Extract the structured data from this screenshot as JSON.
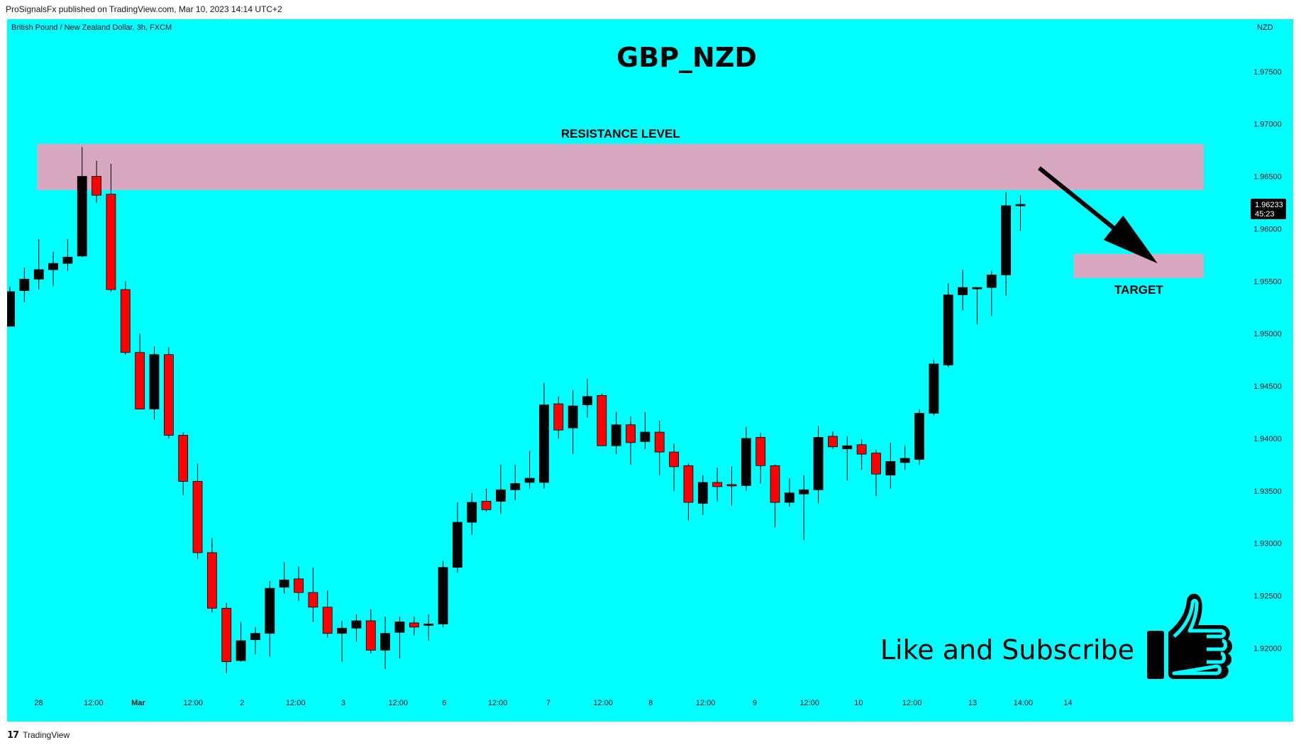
{
  "header": {
    "published_line": "ProSignalsFx published on TradingView.com, Mar 10, 2023 14:14 UTC+2"
  },
  "footer": {
    "logo_glyph": "17",
    "brand": "TradingView"
  },
  "colors": {
    "background": "#00FFFF",
    "bull": "#000000",
    "bear": "#FF0000",
    "zone": "#D8A8C0",
    "text": "#131722"
  },
  "chart_data": {
    "type": "candlestick",
    "symbol_label": "British Pound / New Zealand Dollar, 3h, FXCM",
    "title": "GBP_NZD",
    "currency": "NZD",
    "ylim": [
      1.914,
      1.98
    ],
    "y_ticks": [
      "1.97500",
      "1.97000",
      "1.96500",
      "1.96000",
      "1.95500",
      "1.95000",
      "1.94500",
      "1.94000",
      "1.93500",
      "1.93000",
      "1.92500",
      "1.92000"
    ],
    "x_ticks": [
      "28",
      "12:00",
      "Mar",
      "12:00",
      "2",
      "12:00",
      "3",
      "12:00",
      "6",
      "12:00",
      "7",
      "12:00",
      "8",
      "12:00",
      "9",
      "12:00",
      "10",
      "12:00",
      "13",
      "14:00",
      "14"
    ],
    "last_price": {
      "price": "1.96233",
      "countdown": "45:23",
      "value": 1.96233
    },
    "zones": [
      {
        "name": "RESISTANCE LEVEL",
        "low": 1.9637,
        "high": 1.9681,
        "from_index": 1.9,
        "to_index": 82.7,
        "label_position": "above-center"
      },
      {
        "name": "TARGET",
        "low": 1.9553,
        "high": 1.9576,
        "from_index": 73.7,
        "to_index": 82.7,
        "label_position": "below-center"
      }
    ],
    "arrow": {
      "from": [
        71.3,
        1.9658
      ],
      "to": [
        79.5,
        1.9567
      ],
      "direction": "down-right"
    },
    "annotation": {
      "text": "Like and Subscribe",
      "icon": "thumbs-up-icon"
    },
    "candles": [
      {
        "o": 1.9507,
        "h": 1.9545,
        "l": 1.9507,
        "c": 1.954
      },
      {
        "o": 1.9541,
        "h": 1.9563,
        "l": 1.953,
        "c": 1.9552
      },
      {
        "o": 1.9552,
        "h": 1.959,
        "l": 1.9542,
        "c": 1.9561
      },
      {
        "o": 1.9561,
        "h": 1.9578,
        "l": 1.9545,
        "c": 1.9567
      },
      {
        "o": 1.9567,
        "h": 1.959,
        "l": 1.956,
        "c": 1.9573
      },
      {
        "o": 1.9574,
        "h": 1.9678,
        "l": 1.9573,
        "c": 1.965
      },
      {
        "o": 1.965,
        "h": 1.9665,
        "l": 1.9625,
        "c": 1.9632
      },
      {
        "o": 1.9633,
        "h": 1.9662,
        "l": 1.954,
        "c": 1.9542
      },
      {
        "o": 1.9542,
        "h": 1.955,
        "l": 1.948,
        "c": 1.9482
      },
      {
        "o": 1.9482,
        "h": 1.95,
        "l": 1.9428,
        "c": 1.9428
      },
      {
        "o": 1.9428,
        "h": 1.9488,
        "l": 1.9418,
        "c": 1.948
      },
      {
        "o": 1.948,
        "h": 1.9487,
        "l": 1.94,
        "c": 1.9403
      },
      {
        "o": 1.9403,
        "h": 1.9406,
        "l": 1.9346,
        "c": 1.9359
      },
      {
        "o": 1.9359,
        "h": 1.9376,
        "l": 1.9285,
        "c": 1.9291
      },
      {
        "o": 1.9291,
        "h": 1.9305,
        "l": 1.9234,
        "c": 1.9238
      },
      {
        "o": 1.9238,
        "h": 1.9243,
        "l": 1.9176,
        "c": 1.9187
      },
      {
        "o": 1.9188,
        "h": 1.9225,
        "l": 1.9187,
        "c": 1.9207
      },
      {
        "o": 1.9208,
        "h": 1.922,
        "l": 1.9194,
        "c": 1.9214
      },
      {
        "o": 1.9214,
        "h": 1.9264,
        "l": 1.9192,
        "c": 1.9257
      },
      {
        "o": 1.9258,
        "h": 1.9282,
        "l": 1.9252,
        "c": 1.9265
      },
      {
        "o": 1.9266,
        "h": 1.9278,
        "l": 1.9245,
        "c": 1.9253
      },
      {
        "o": 1.9253,
        "h": 1.9277,
        "l": 1.9225,
        "c": 1.9239
      },
      {
        "o": 1.9239,
        "h": 1.9255,
        "l": 1.921,
        "c": 1.9214
      },
      {
        "o": 1.9214,
        "h": 1.9226,
        "l": 1.9187,
        "c": 1.9219
      },
      {
        "o": 1.9219,
        "h": 1.9232,
        "l": 1.9206,
        "c": 1.9226
      },
      {
        "o": 1.9226,
        "h": 1.9237,
        "l": 1.9195,
        "c": 1.9198
      },
      {
        "o": 1.9198,
        "h": 1.923,
        "l": 1.918,
        "c": 1.9214
      },
      {
        "o": 1.9215,
        "h": 1.923,
        "l": 1.919,
        "c": 1.9225
      },
      {
        "o": 1.9224,
        "h": 1.923,
        "l": 1.9212,
        "c": 1.922
      },
      {
        "o": 1.9222,
        "h": 1.9232,
        "l": 1.9207,
        "c": 1.9223
      },
      {
        "o": 1.9223,
        "h": 1.9283,
        "l": 1.922,
        "c": 1.9277
      },
      {
        "o": 1.9277,
        "h": 1.9339,
        "l": 1.9272,
        "c": 1.932
      },
      {
        "o": 1.932,
        "h": 1.9348,
        "l": 1.9308,
        "c": 1.9339
      },
      {
        "o": 1.934,
        "h": 1.9352,
        "l": 1.933,
        "c": 1.9332
      },
      {
        "o": 1.934,
        "h": 1.9375,
        "l": 1.9328,
        "c": 1.9351
      },
      {
        "o": 1.9351,
        "h": 1.9375,
        "l": 1.9341,
        "c": 1.9357
      },
      {
        "o": 1.9358,
        "h": 1.9388,
        "l": 1.9352,
        "c": 1.9362
      },
      {
        "o": 1.9358,
        "h": 1.9453,
        "l": 1.9352,
        "c": 1.9432
      },
      {
        "o": 1.9433,
        "h": 1.944,
        "l": 1.94,
        "c": 1.9408
      },
      {
        "o": 1.941,
        "h": 1.9446,
        "l": 1.9385,
        "c": 1.9431
      },
      {
        "o": 1.9432,
        "h": 1.9457,
        "l": 1.942,
        "c": 1.944
      },
      {
        "o": 1.9441,
        "h": 1.9443,
        "l": 1.9393,
        "c": 1.9393
      },
      {
        "o": 1.9393,
        "h": 1.9425,
        "l": 1.9385,
        "c": 1.9413
      },
      {
        "o": 1.9413,
        "h": 1.9421,
        "l": 1.9375,
        "c": 1.9396
      },
      {
        "o": 1.9397,
        "h": 1.9425,
        "l": 1.939,
        "c": 1.9406
      },
      {
        "o": 1.9406,
        "h": 1.9417,
        "l": 1.9365,
        "c": 1.9387
      },
      {
        "o": 1.9387,
        "h": 1.9395,
        "l": 1.935,
        "c": 1.9373
      },
      {
        "o": 1.9374,
        "h": 1.9376,
        "l": 1.9322,
        "c": 1.9339
      },
      {
        "o": 1.9338,
        "h": 1.9365,
        "l": 1.9327,
        "c": 1.9358
      },
      {
        "o": 1.9358,
        "h": 1.9372,
        "l": 1.934,
        "c": 1.9354
      },
      {
        "o": 1.9356,
        "h": 1.9373,
        "l": 1.9336,
        "c": 1.9355
      },
      {
        "o": 1.9355,
        "h": 1.9411,
        "l": 1.935,
        "c": 1.94
      },
      {
        "o": 1.9401,
        "h": 1.9405,
        "l": 1.9357,
        "c": 1.9374
      },
      {
        "o": 1.9374,
        "h": 1.9375,
        "l": 1.9315,
        "c": 1.9339
      },
      {
        "o": 1.9339,
        "h": 1.9362,
        "l": 1.9335,
        "c": 1.9348
      },
      {
        "o": 1.9347,
        "h": 1.9365,
        "l": 1.9303,
        "c": 1.9351
      },
      {
        "o": 1.9351,
        "h": 1.9412,
        "l": 1.9338,
        "c": 1.9401
      },
      {
        "o": 1.9402,
        "h": 1.9407,
        "l": 1.939,
        "c": 1.9392
      },
      {
        "o": 1.939,
        "h": 1.9402,
        "l": 1.936,
        "c": 1.9393
      },
      {
        "o": 1.9394,
        "h": 1.9399,
        "l": 1.937,
        "c": 1.9385
      },
      {
        "o": 1.9386,
        "h": 1.9389,
        "l": 1.9345,
        "c": 1.9366
      },
      {
        "o": 1.9365,
        "h": 1.9396,
        "l": 1.9352,
        "c": 1.9378
      },
      {
        "o": 1.9377,
        "h": 1.9393,
        "l": 1.937,
        "c": 1.9381
      },
      {
        "o": 1.938,
        "h": 1.9428,
        "l": 1.9375,
        "c": 1.9424
      },
      {
        "o": 1.9424,
        "h": 1.9475,
        "l": 1.9422,
        "c": 1.9471
      },
      {
        "o": 1.947,
        "h": 1.9548,
        "l": 1.9468,
        "c": 1.9537
      },
      {
        "o": 1.9537,
        "h": 1.9561,
        "l": 1.9522,
        "c": 1.9544
      },
      {
        "o": 1.9543,
        "h": 1.9543,
        "l": 1.9509,
        "c": 1.9544
      },
      {
        "o": 1.9544,
        "h": 1.956,
        "l": 1.9517,
        "c": 1.9556
      },
      {
        "o": 1.9556,
        "h": 1.9635,
        "l": 1.9536,
        "c": 1.9622
      },
      {
        "o": 1.9622,
        "h": 1.9632,
        "l": 1.9598,
        "c": 1.96233
      }
    ]
  }
}
